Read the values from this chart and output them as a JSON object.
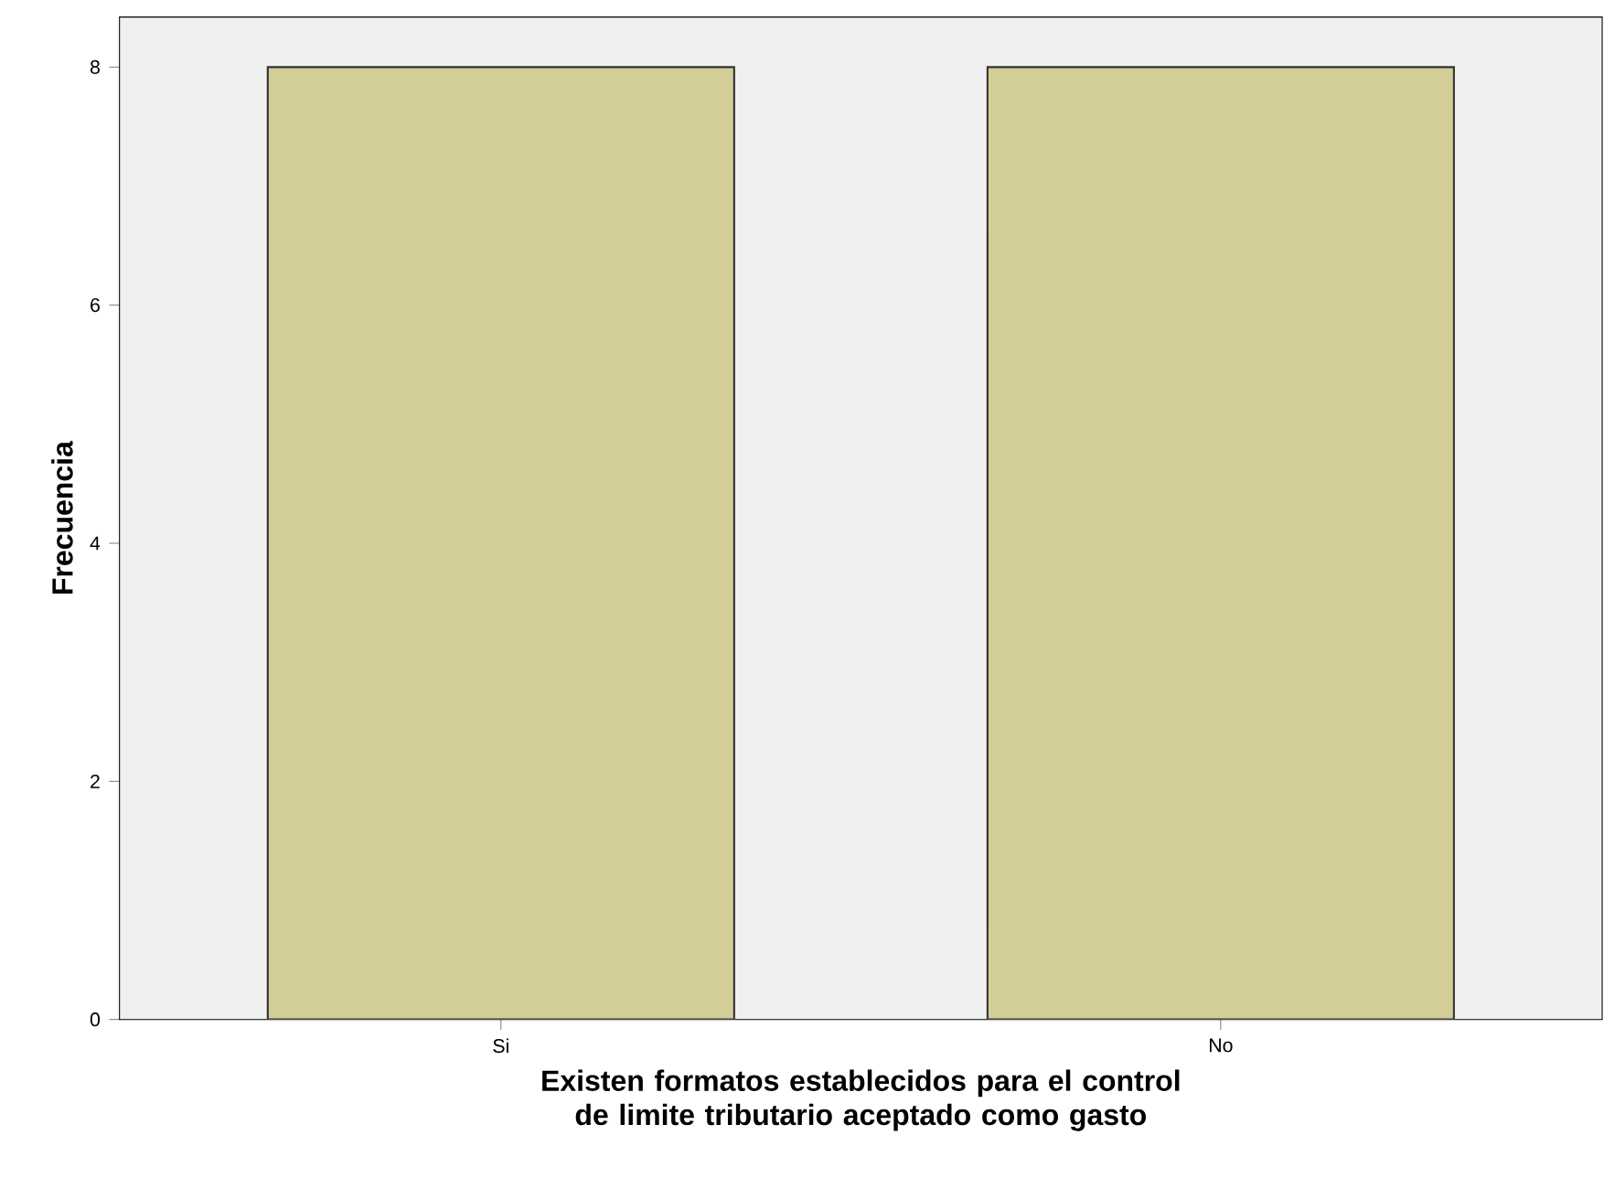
{
  "chart_data": {
    "type": "bar",
    "xlabel": "Existen formatos establecidos para el control de limite tributario aceptado como gasto",
    "ylabel": "Frecuencia",
    "categories": [
      "Si",
      "No"
    ],
    "values": [
      8,
      8
    ],
    "color": "#d3ce97",
    "ylim": [
      0,
      8.42
    ],
    "yticks": [
      0,
      2,
      4,
      6,
      8
    ],
    "grid": false
  }
}
